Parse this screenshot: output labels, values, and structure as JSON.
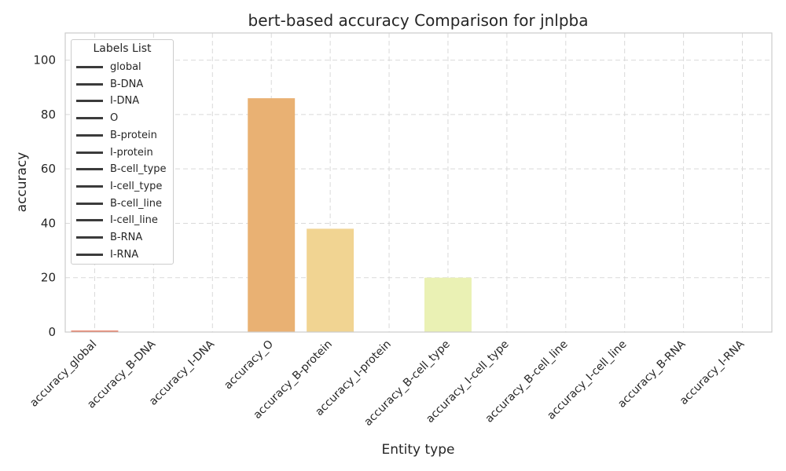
{
  "chart_data": {
    "type": "bar",
    "title": "bert-based accuracy Comparison for jnlpba",
    "xlabel": "Entity type",
    "ylabel": "accuracy",
    "ylim": [
      0,
      110
    ],
    "yticks": [
      0,
      20,
      40,
      60,
      80,
      100
    ],
    "grid": true,
    "categories": [
      "accuracy_global",
      "accuracy_B-DNA",
      "accuracy_I-DNA",
      "accuracy_O",
      "accuracy_B-protein",
      "accuracy_I-protein",
      "accuracy_B-cell_type",
      "accuracy_I-cell_type",
      "accuracy_B-cell_line",
      "accuracy_I-cell_line",
      "accuracy_B-RNA",
      "accuracy_I-RNA"
    ],
    "values": [
      0.5,
      0,
      0,
      86,
      38,
      0,
      20,
      0,
      0,
      0,
      0,
      0
    ],
    "colors": [
      "#e35e3f",
      "#ec7a4c",
      "#f09857",
      "#e9b173",
      "#f1d492",
      "#f5e6a0",
      "#eaf1b4",
      "#d3e9a5",
      "#b5dca1",
      "#93cfa3",
      "#6fbfa7",
      "#4fa8ae"
    ],
    "legend": {
      "title": "Labels List",
      "position": "upper-left",
      "entries": [
        "global",
        "B-DNA",
        "I-DNA",
        "O",
        "B-protein",
        "I-protein",
        "B-cell_type",
        "I-cell_type",
        "B-cell_line",
        "I-cell_line",
        "B-RNA",
        "I-RNA"
      ]
    }
  }
}
